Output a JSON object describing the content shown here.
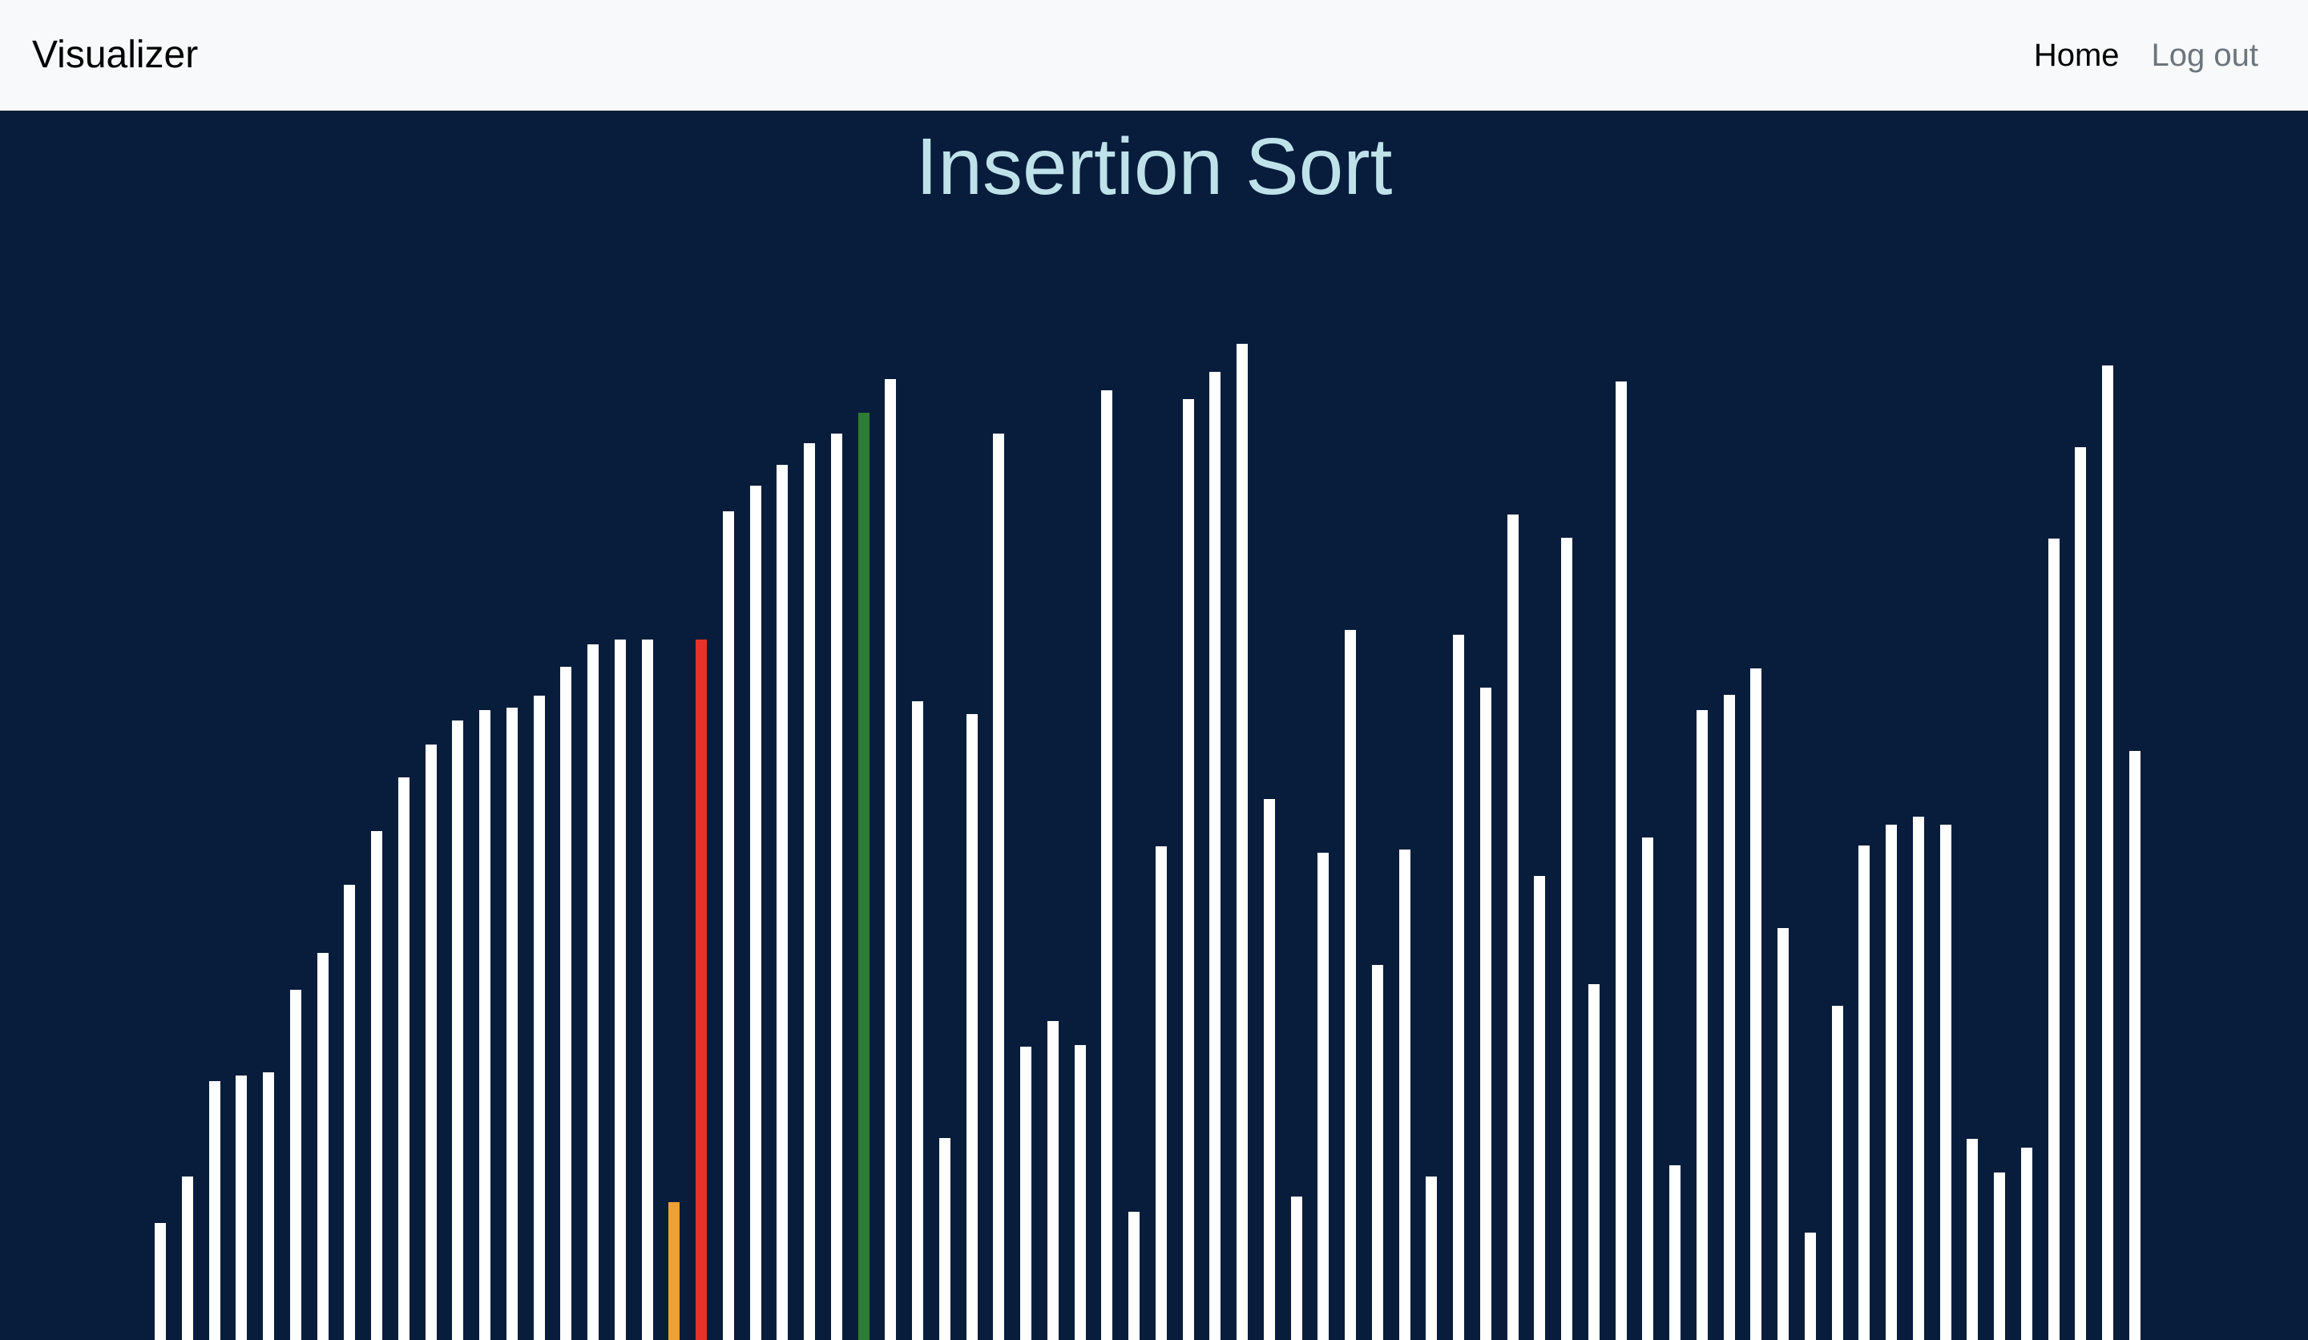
{
  "navbar": {
    "brand": "Visualizer",
    "links": {
      "home": "Home",
      "logout": "Log out"
    }
  },
  "main": {
    "title": "Insertion Sort"
  },
  "colors": {
    "bar_default": "#ffffff",
    "bar_compare": "#e8312a",
    "bar_key": "#f0a030",
    "bar_sorted_boundary": "#2e7d32",
    "background": "#081d3c",
    "title": "#bfe2ea"
  },
  "chart_data": {
    "type": "bar",
    "values": [
      146,
      204,
      323,
      330,
      334,
      437,
      483,
      568,
      635,
      702,
      743,
      773,
      786,
      789,
      804,
      840,
      868,
      874,
      874,
      172,
      874,
      1034,
      1066,
      1092,
      1119,
      1131,
      1157,
      1199,
      797,
      252,
      781,
      1131,
      366,
      398,
      368,
      1185,
      160,
      616,
      1174,
      1208,
      1243,
      675,
      179,
      608,
      886,
      468,
      612,
      204,
      880,
      814,
      1030,
      579,
      1001,
      444,
      1196,
      627,
      218,
      786,
      805,
      838,
      514,
      134,
      417,
      617,
      643,
      653,
      643,
      251,
      209,
      240,
      1000,
      1114,
      1216,
      735
    ],
    "highlights": {
      "key_index": 19,
      "compare_index": 20,
      "boundary_index": 26
    },
    "ylim": [
      0,
      1534
    ]
  }
}
